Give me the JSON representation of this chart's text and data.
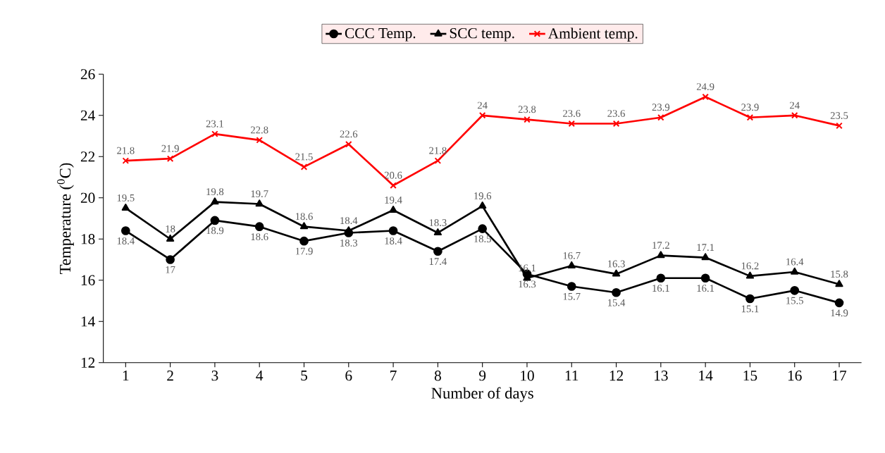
{
  "chart_data": {
    "type": "line",
    "xlabel": "Number of days",
    "ylabel": "Temperature ($^{0}$C)",
    "categories": [
      "1",
      "2",
      "3",
      "4",
      "5",
      "6",
      "7",
      "8",
      "9",
      "10",
      "11",
      "12",
      "13",
      "14",
      "15",
      "16",
      "17"
    ],
    "series": [
      {
        "name": "CCC Temp.",
        "color": "#000000",
        "marker": "circle",
        "values": [
          18.4,
          17,
          18.9,
          18.6,
          17.9,
          18.3,
          18.4,
          17.4,
          18.5,
          16.3,
          15.7,
          15.4,
          16.1,
          16.1,
          15.1,
          15.5,
          14.9
        ]
      },
      {
        "name": "SCC temp.",
        "color": "#000000",
        "marker": "triangle",
        "values": [
          19.5,
          18,
          19.8,
          19.7,
          18.6,
          18.4,
          19.4,
          18.3,
          19.6,
          16.1,
          16.7,
          16.3,
          17.2,
          17.1,
          16.2,
          16.4,
          15.8
        ]
      },
      {
        "name": "Ambient temp.",
        "color": "#ff0000",
        "marker": "cross",
        "values": [
          21.8,
          21.9,
          23.1,
          22.8,
          21.5,
          22.6,
          20.6,
          21.8,
          24,
          23.8,
          23.6,
          23.6,
          23.9,
          24.9,
          23.9,
          24,
          23.5
        ]
      }
    ],
    "ylim": [
      12,
      26
    ],
    "yticks": [
      12,
      14,
      16,
      18,
      20,
      22,
      24,
      26
    ],
    "grid": false,
    "legend": "top",
    "data_labels": true
  }
}
